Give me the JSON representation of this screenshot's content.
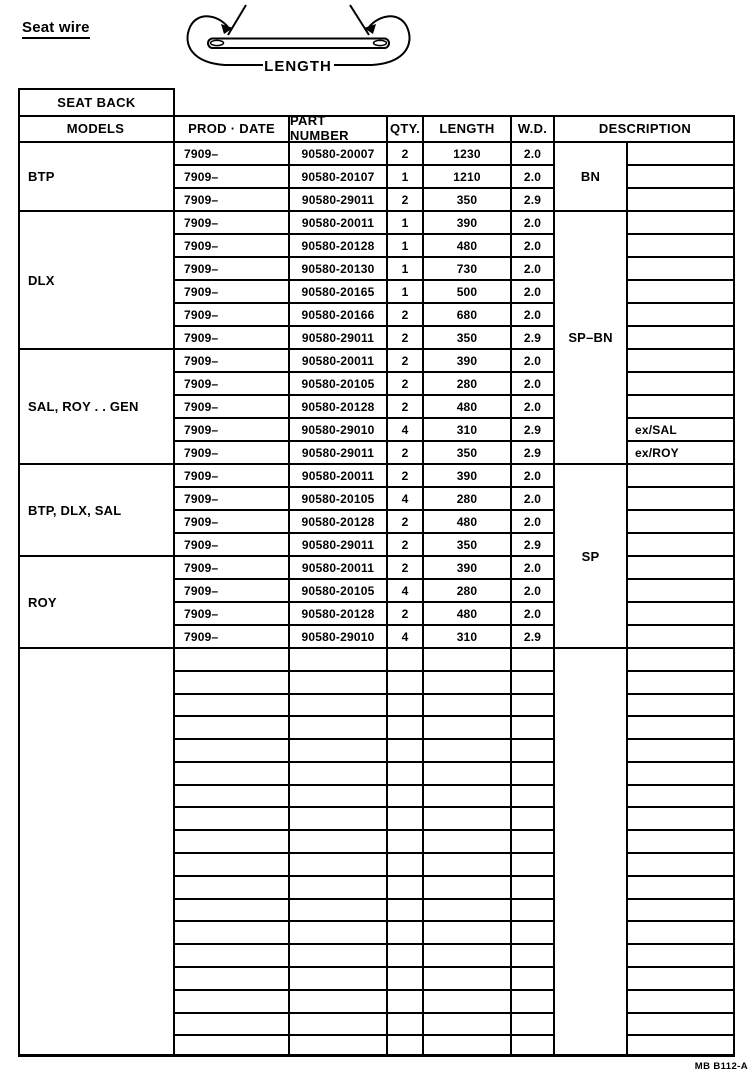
{
  "page": {
    "title": "Seat wire",
    "footer_code": "MB B112-A"
  },
  "diagram": {
    "length_label": "LENGTH"
  },
  "table": {
    "section_header": "SEAT BACK",
    "columns": [
      "MODELS",
      "PROD · DATE",
      "PART NUMBER",
      "QTY.",
      "LENGTH",
      "W.D.",
      "DESCRIPTION"
    ],
    "model_groups": [
      {
        "label": "BTP",
        "rows": 3
      },
      {
        "label": "DLX",
        "rows": 6
      },
      {
        "label": "SAL, ROY . . GEN",
        "rows": 5
      },
      {
        "label": "BTP, DLX, SAL",
        "rows": 4
      },
      {
        "label": "ROY",
        "rows": 4
      }
    ],
    "description_groups": [
      {
        "label": "BN",
        "rows": 3
      },
      {
        "label": "SP–BN",
        "rows": 11
      },
      {
        "label": "SP",
        "rows": 8
      }
    ],
    "rows": [
      {
        "prod_date": "7909–",
        "part_number": "90580-20007",
        "qty": "2",
        "length": "1230",
        "wd": "2.0",
        "note": ""
      },
      {
        "prod_date": "7909–",
        "part_number": "90580-20107",
        "qty": "1",
        "length": "1210",
        "wd": "2.0",
        "note": ""
      },
      {
        "prod_date": "7909–",
        "part_number": "90580-29011",
        "qty": "2",
        "length": "350",
        "wd": "2.9",
        "note": ""
      },
      {
        "prod_date": "7909–",
        "part_number": "90580-20011",
        "qty": "1",
        "length": "390",
        "wd": "2.0",
        "note": ""
      },
      {
        "prod_date": "7909–",
        "part_number": "90580-20128",
        "qty": "1",
        "length": "480",
        "wd": "2.0",
        "note": ""
      },
      {
        "prod_date": "7909–",
        "part_number": "90580-20130",
        "qty": "1",
        "length": "730",
        "wd": "2.0",
        "note": ""
      },
      {
        "prod_date": "7909–",
        "part_number": "90580-20165",
        "qty": "1",
        "length": "500",
        "wd": "2.0",
        "note": ""
      },
      {
        "prod_date": "7909–",
        "part_number": "90580-20166",
        "qty": "2",
        "length": "680",
        "wd": "2.0",
        "note": ""
      },
      {
        "prod_date": "7909–",
        "part_number": "90580-29011",
        "qty": "2",
        "length": "350",
        "wd": "2.9",
        "note": ""
      },
      {
        "prod_date": "7909–",
        "part_number": "90580-20011",
        "qty": "2",
        "length": "390",
        "wd": "2.0",
        "note": ""
      },
      {
        "prod_date": "7909–",
        "part_number": "90580-20105",
        "qty": "2",
        "length": "280",
        "wd": "2.0",
        "note": ""
      },
      {
        "prod_date": "7909–",
        "part_number": "90580-20128",
        "qty": "2",
        "length": "480",
        "wd": "2.0",
        "note": ""
      },
      {
        "prod_date": "7909–",
        "part_number": "90580-29010",
        "qty": "4",
        "length": "310",
        "wd": "2.9",
        "note": "ex/SAL"
      },
      {
        "prod_date": "7909–",
        "part_number": "90580-29011",
        "qty": "2",
        "length": "350",
        "wd": "2.9",
        "note": "ex/ROY"
      },
      {
        "prod_date": "7909–",
        "part_number": "90580-20011",
        "qty": "2",
        "length": "390",
        "wd": "2.0",
        "note": ""
      },
      {
        "prod_date": "7909–",
        "part_number": "90580-20105",
        "qty": "4",
        "length": "280",
        "wd": "2.0",
        "note": ""
      },
      {
        "prod_date": "7909–",
        "part_number": "90580-20128",
        "qty": "2",
        "length": "480",
        "wd": "2.0",
        "note": ""
      },
      {
        "prod_date": "7909–",
        "part_number": "90580-29011",
        "qty": "2",
        "length": "350",
        "wd": "2.9",
        "note": ""
      },
      {
        "prod_date": "7909–",
        "part_number": "90580-20011",
        "qty": "2",
        "length": "390",
        "wd": "2.0",
        "note": ""
      },
      {
        "prod_date": "7909–",
        "part_number": "90580-20105",
        "qty": "4",
        "length": "280",
        "wd": "2.0",
        "note": ""
      },
      {
        "prod_date": "7909–",
        "part_number": "90580-20128",
        "qty": "2",
        "length": "480",
        "wd": "2.0",
        "note": ""
      },
      {
        "prod_date": "7909–",
        "part_number": "90580-29010",
        "qty": "4",
        "length": "310",
        "wd": "2.9",
        "note": ""
      }
    ],
    "empty_rows": 18
  }
}
